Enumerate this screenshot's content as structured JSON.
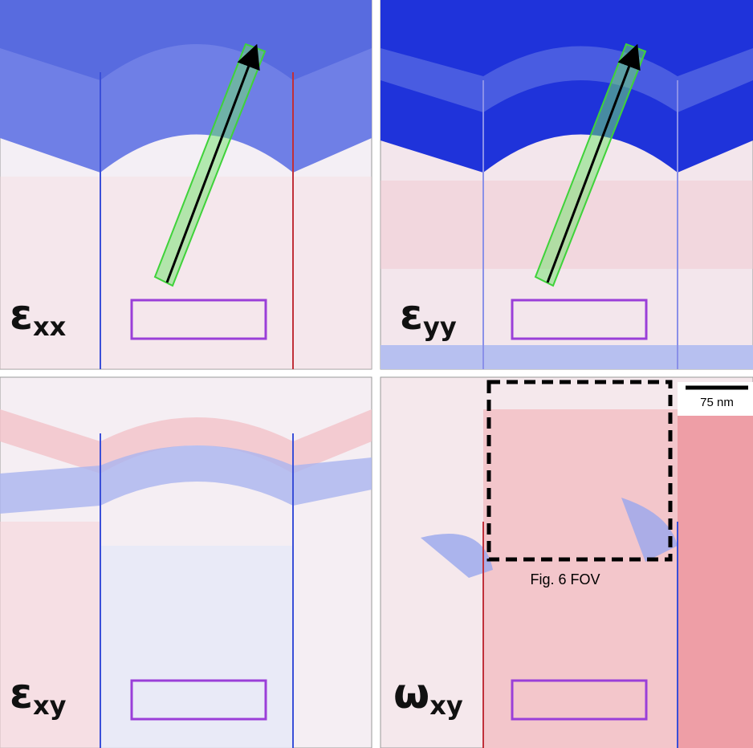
{
  "panels": [
    {
      "symbol": "ε",
      "subscript": "xx"
    },
    {
      "symbol": "ε",
      "subscript": "yy"
    },
    {
      "symbol": "ε",
      "subscript": "xy"
    },
    {
      "symbol": "ω",
      "subscript": "xy"
    }
  ],
  "scale_bar": "75 nm",
  "fov_label": "Fig. 6 FOV"
}
